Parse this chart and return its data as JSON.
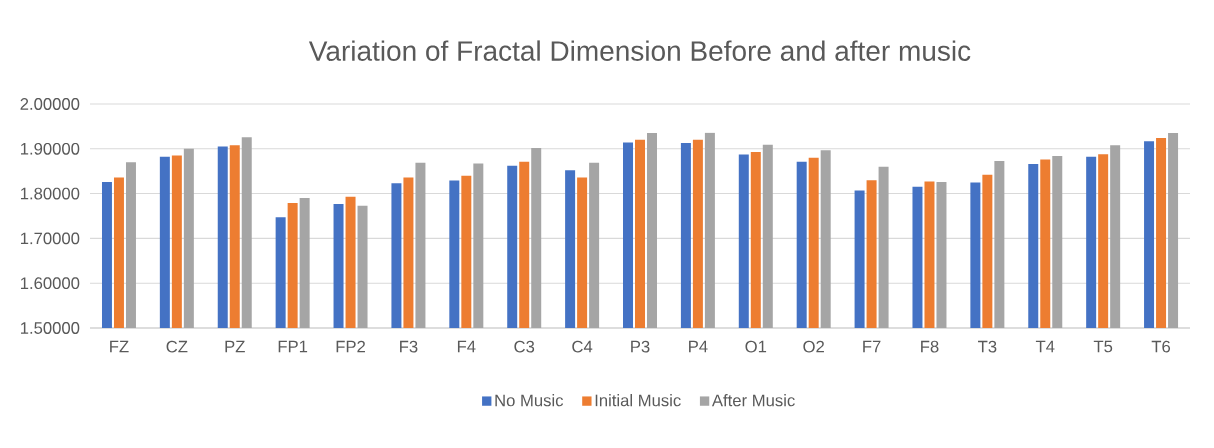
{
  "chart_data": {
    "type": "bar",
    "title": "Variation of Fractal Dimension Before and after music",
    "categories": [
      "FZ",
      "CZ",
      "PZ",
      "FP1",
      "FP2",
      "F3",
      "F4",
      "C3",
      "C4",
      "P3",
      "P4",
      "O1",
      "O2",
      "F7",
      "F8",
      "T3",
      "T4",
      "T5",
      "T6"
    ],
    "series": [
      {
        "name": "No Music",
        "color": "#4472c4",
        "values": [
          1.826,
          1.882,
          1.905,
          1.747,
          1.777,
          1.823,
          1.829,
          1.862,
          1.852,
          1.914,
          1.913,
          1.887,
          1.871,
          1.807,
          1.815,
          1.825,
          1.866,
          1.882,
          1.917
        ]
      },
      {
        "name": "Initial Music",
        "color": "#ed7d31",
        "values": [
          1.836,
          1.885,
          1.908,
          1.779,
          1.793,
          1.836,
          1.84,
          1.871,
          1.836,
          1.92,
          1.92,
          1.893,
          1.88,
          1.83,
          1.827,
          1.842,
          1.876,
          1.888,
          1.924
        ]
      },
      {
        "name": "After Music",
        "color": "#a5a5a5",
        "values": [
          1.87,
          1.9,
          1.926,
          1.79,
          1.773,
          1.869,
          1.867,
          1.902,
          1.869,
          1.935,
          1.936,
          1.909,
          1.897,
          1.86,
          1.826,
          1.873,
          1.884,
          1.908,
          1.935
        ]
      }
    ],
    "ylim": [
      1.5,
      2.0
    ],
    "yticks": [
      {
        "value": 1.5,
        "label": "1.50000"
      },
      {
        "value": 1.6,
        "label": "1.60000"
      },
      {
        "value": 1.7,
        "label": "1.70000"
      },
      {
        "value": 1.8,
        "label": "1.80000"
      },
      {
        "value": 1.9,
        "label": "1.90000"
      },
      {
        "value": 2.0,
        "label": "2.00000"
      }
    ],
    "grid": "y",
    "legend": "bottom"
  }
}
